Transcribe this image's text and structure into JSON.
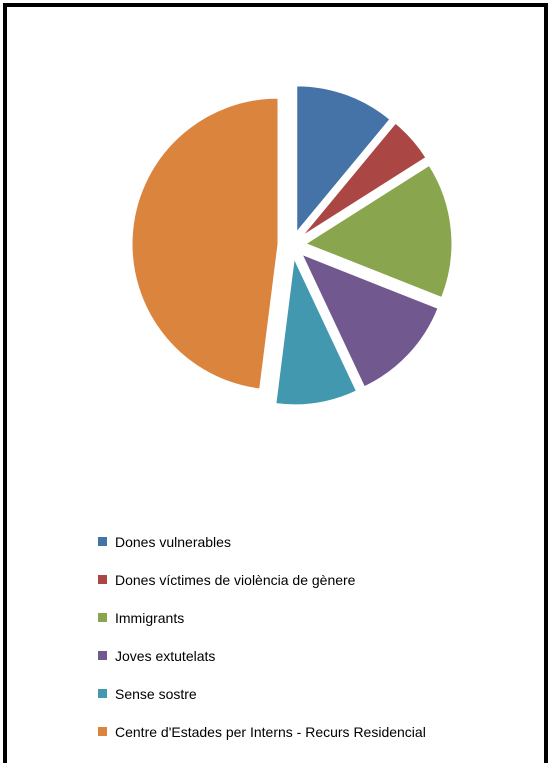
{
  "chart_data": {
    "type": "pie",
    "exploded": true,
    "legend_position": "bottom",
    "categories": [
      "Dones vulnerables",
      "Dones víctimes de violència de gènere",
      "Immigrants",
      "Joves extutelats",
      "Sense sostre",
      "Centre d'Estades per Interns - Recurs Residencial"
    ],
    "values": [
      11,
      5,
      15,
      12,
      9,
      48
    ],
    "colors": [
      "#4572A7",
      "#AA4643",
      "#89A54E",
      "#71588F",
      "#4198AF",
      "#DB843D"
    ]
  }
}
